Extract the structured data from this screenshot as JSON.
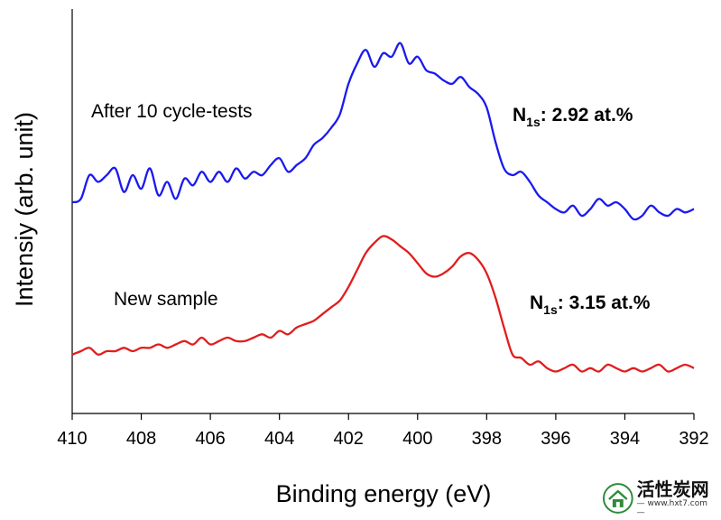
{
  "chart_data": {
    "type": "line",
    "xlabel": "Binding energy (eV)",
    "ylabel": "Intensiy (arb. unit)",
    "xlim": [
      410,
      392
    ],
    "x_reversed": true,
    "ylim": [
      0,
      100
    ],
    "y_ticks_shown": false,
    "x_ticks": [
      410,
      408,
      406,
      404,
      402,
      400,
      398,
      396,
      394,
      392
    ],
    "series": [
      {
        "name": "After 10 cycle-tests",
        "color": "#1a1aee",
        "annotation": {
          "element": "N",
          "subscript": "1s",
          "value": ": 2.92 at.%"
        },
        "x": [
          410.0,
          409.75,
          409.5,
          409.25,
          409.0,
          408.75,
          408.5,
          408.25,
          408.0,
          407.75,
          407.5,
          407.25,
          407.0,
          406.75,
          406.5,
          406.25,
          406.0,
          405.75,
          405.5,
          405.25,
          405.0,
          404.75,
          404.5,
          404.25,
          404.0,
          403.75,
          403.5,
          403.25,
          403.0,
          402.75,
          402.5,
          402.25,
          402.0,
          401.75,
          401.5,
          401.25,
          401.0,
          400.75,
          400.5,
          400.25,
          400.0,
          399.75,
          399.5,
          399.25,
          399.0,
          398.75,
          398.5,
          398.25,
          398.0,
          397.75,
          397.5,
          397.25,
          397.0,
          396.75,
          396.5,
          396.25,
          396.0,
          395.75,
          395.5,
          395.25,
          395.0,
          394.75,
          394.5,
          394.25,
          394.0,
          393.75,
          393.5,
          393.25,
          393.0,
          392.75,
          392.5,
          392.25,
          392.0
        ],
        "values": [
          52,
          53,
          60,
          58,
          60,
          62,
          55,
          60,
          56,
          62,
          54,
          58,
          53,
          59,
          57,
          61,
          58,
          61,
          58,
          62,
          59,
          61,
          60,
          63,
          65,
          61,
          63,
          65,
          69,
          71,
          74,
          78,
          87,
          93,
          97,
          92,
          96,
          95,
          99,
          93,
          95,
          91,
          90,
          88,
          87,
          89,
          86,
          84,
          80,
          70,
          62,
          60,
          61,
          58,
          54,
          52,
          50,
          49,
          51,
          48,
          50,
          53,
          51,
          52,
          50,
          47,
          48,
          51,
          49,
          48,
          50,
          49,
          50
        ]
      },
      {
        "name": "New sample",
        "color": "#e11d1d",
        "annotation": {
          "element": "N",
          "subscript": "1s",
          "value": ": 3.15 at.%"
        },
        "x": [
          410.0,
          409.75,
          409.5,
          409.25,
          409.0,
          408.75,
          408.5,
          408.25,
          408.0,
          407.75,
          407.5,
          407.25,
          407.0,
          406.75,
          406.5,
          406.25,
          406.0,
          405.75,
          405.5,
          405.25,
          405.0,
          404.75,
          404.5,
          404.25,
          404.0,
          403.75,
          403.5,
          403.25,
          403.0,
          402.75,
          402.5,
          402.25,
          402.0,
          401.75,
          401.5,
          401.25,
          401.0,
          400.75,
          400.5,
          400.25,
          400.0,
          399.75,
          399.5,
          399.25,
          399.0,
          398.75,
          398.5,
          398.25,
          398.0,
          397.75,
          397.5,
          397.25,
          397.0,
          396.75,
          396.5,
          396.25,
          396.0,
          395.75,
          395.5,
          395.25,
          395.0,
          394.75,
          394.5,
          394.25,
          394.0,
          393.75,
          393.5,
          393.25,
          393.0,
          392.75,
          392.5,
          392.25,
          392.0
        ],
        "values": [
          7,
          8,
          9,
          7,
          8,
          8,
          9,
          8,
          9,
          9,
          10,
          9,
          10,
          11,
          10,
          12,
          10,
          11,
          12,
          11,
          11,
          12,
          13,
          12,
          14,
          13,
          15,
          16,
          17,
          19,
          21,
          23,
          27,
          32,
          37,
          40,
          42,
          41,
          39,
          37,
          34,
          31,
          30,
          31,
          33,
          36,
          37,
          35,
          31,
          24,
          15,
          7,
          6,
          4,
          5,
          3,
          2,
          3,
          4,
          2,
          3,
          2,
          4,
          3,
          2,
          3,
          2,
          3,
          4,
          2,
          3,
          4,
          3
        ]
      }
    ]
  },
  "watermark": {
    "main_text": "活性炭网",
    "url_text": "— www.hxt7.com —"
  }
}
